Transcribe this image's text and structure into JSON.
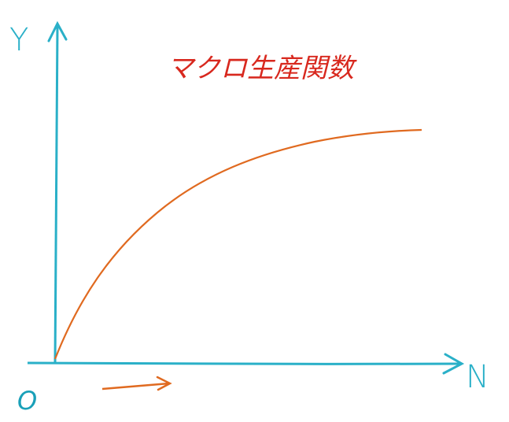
{
  "title": "マクロ生産関数",
  "axes": {
    "y_label": "Y",
    "x_label": "N",
    "origin": "O"
  }
}
